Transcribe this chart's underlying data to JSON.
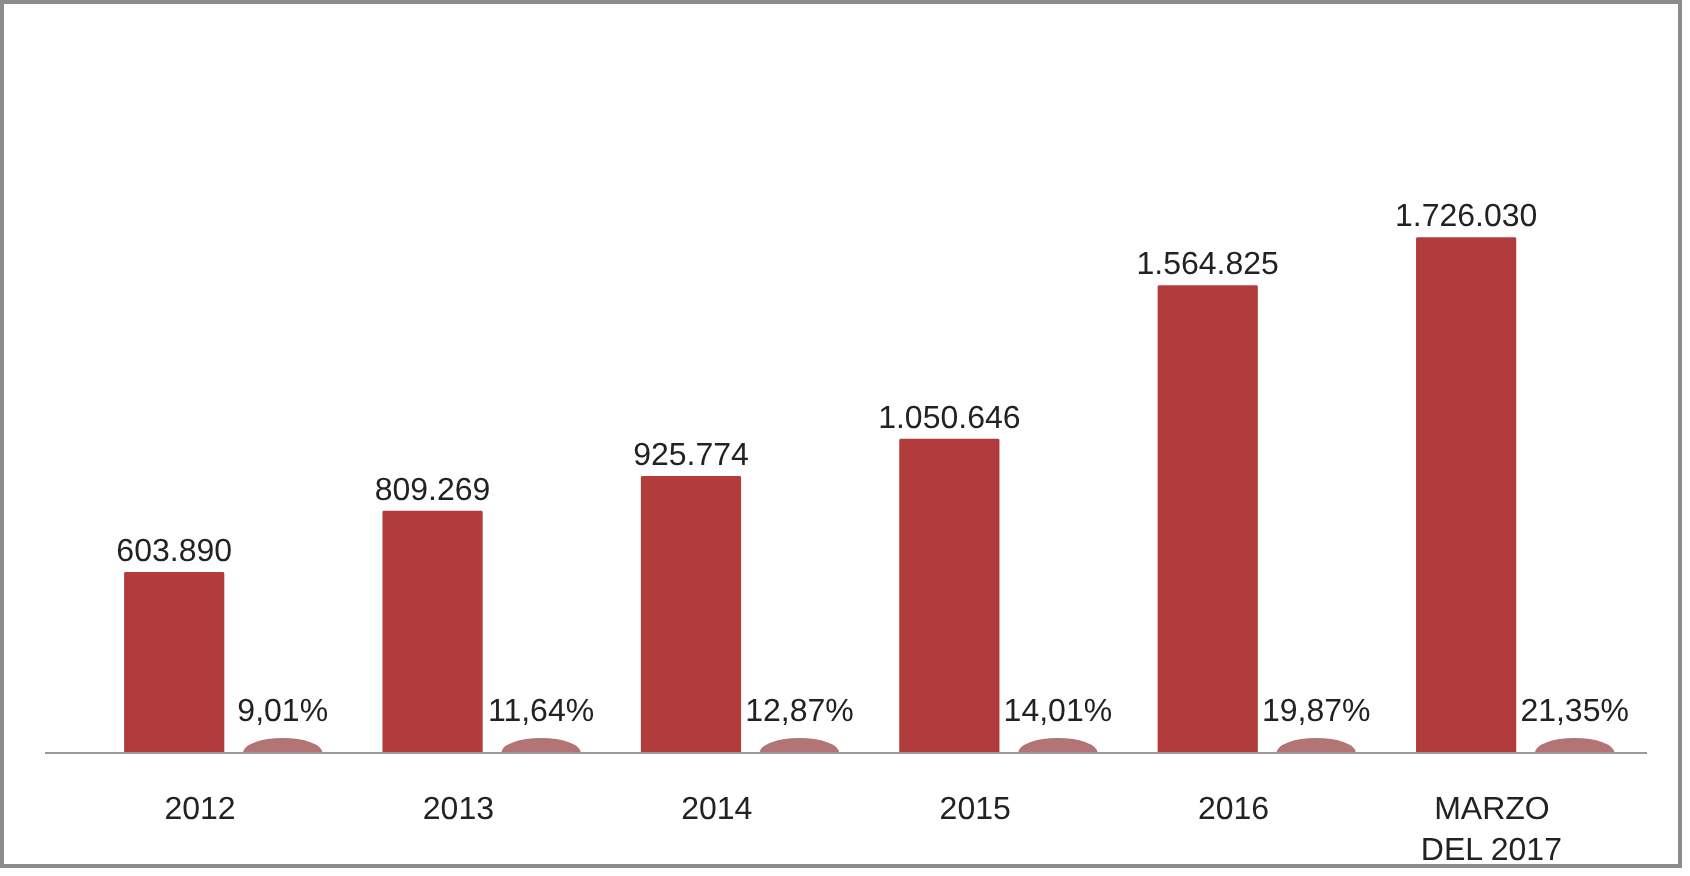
{
  "chart_data": {
    "type": "bar",
    "categories": [
      "2012",
      "2013",
      "2014",
      "2015",
      "2016",
      "MARZO DEL 2017"
    ],
    "series": [
      {
        "color": "#b23b3b",
        "values": [
          603890,
          809269,
          925774,
          1050646,
          1564825,
          1726030
        ],
        "value_labels": [
          "603.890",
          "809.269",
          "925.774",
          "1.050.646",
          "1.564.825",
          "1.726.030"
        ]
      },
      {
        "type": "scatter",
        "color": "#b27474",
        "marker": "circle",
        "values": [
          9.01,
          11.64,
          12.87,
          14.01,
          19.87,
          21.35
        ],
        "value_labels": [
          "9,01%",
          "11,64%",
          "12,87%",
          "14,01%",
          "19,87%",
          "21,35%"
        ]
      }
    ],
    "tick_labels": "x"
  }
}
